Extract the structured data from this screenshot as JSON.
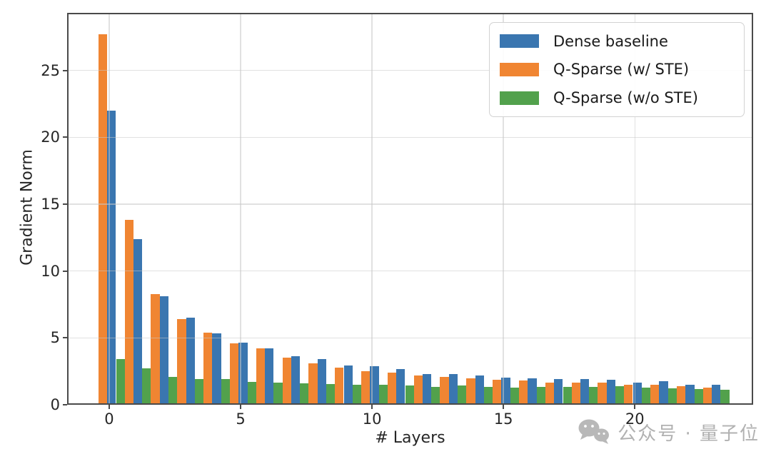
{
  "chart_data": {
    "type": "bar",
    "title": "",
    "xlabel": "# Layers",
    "ylabel": "Gradient Norm",
    "x_ticks": [
      0,
      5,
      10,
      15,
      20
    ],
    "y_ticks": [
      0,
      5,
      10,
      15,
      20,
      25
    ],
    "xlim": [
      -1.6,
      24.5
    ],
    "ylim": [
      0,
      29.3
    ],
    "grid": true,
    "grid_above_bars": true,
    "legend_position": "upper right",
    "categories": [
      0,
      1,
      2,
      3,
      4,
      5,
      6,
      7,
      8,
      9,
      10,
      11,
      12,
      13,
      14,
      15,
      16,
      17,
      18,
      19,
      20,
      21,
      22,
      23
    ],
    "bar_draw_order": [
      "Q-Sparse (w/ STE)",
      "Dense baseline",
      "Q-Sparse (w/o STE)"
    ],
    "series": [
      {
        "name": "Dense baseline",
        "color": "#3A76B0",
        "values": [
          22.0,
          12.4,
          8.1,
          6.5,
          5.35,
          4.65,
          4.2,
          3.65,
          3.4,
          2.95,
          2.9,
          2.65,
          2.3,
          2.3,
          2.2,
          2.05,
          2.0,
          1.95,
          1.9,
          1.85,
          1.65,
          1.75,
          1.5,
          1.5
        ]
      },
      {
        "name": "Q-Sparse (w/ STE)",
        "color": "#F08532",
        "values": [
          27.7,
          13.8,
          8.3,
          6.4,
          5.4,
          4.6,
          4.2,
          3.55,
          3.1,
          2.8,
          2.5,
          2.4,
          2.2,
          2.1,
          2.0,
          1.85,
          1.8,
          1.65,
          1.65,
          1.65,
          1.5,
          1.5,
          1.4,
          1.3
        ]
      },
      {
        "name": "Q-Sparse (w/o STE)",
        "color": "#52A14C",
        "values": [
          3.4,
          2.7,
          2.1,
          1.95,
          1.9,
          1.7,
          1.65,
          1.6,
          1.55,
          1.5,
          1.5,
          1.45,
          1.35,
          1.45,
          1.35,
          1.3,
          1.35,
          1.35,
          1.35,
          1.4,
          1.3,
          1.25,
          1.2,
          1.15
        ]
      }
    ]
  },
  "axes": {
    "spine_color": "#4a4a4a",
    "grid_color": "#cccccc",
    "text_color": "#262626",
    "background": "#ffffff"
  },
  "watermark": {
    "icon": "wechat-icon",
    "text": "公众号 · 量子位",
    "color": "#ababab"
  }
}
